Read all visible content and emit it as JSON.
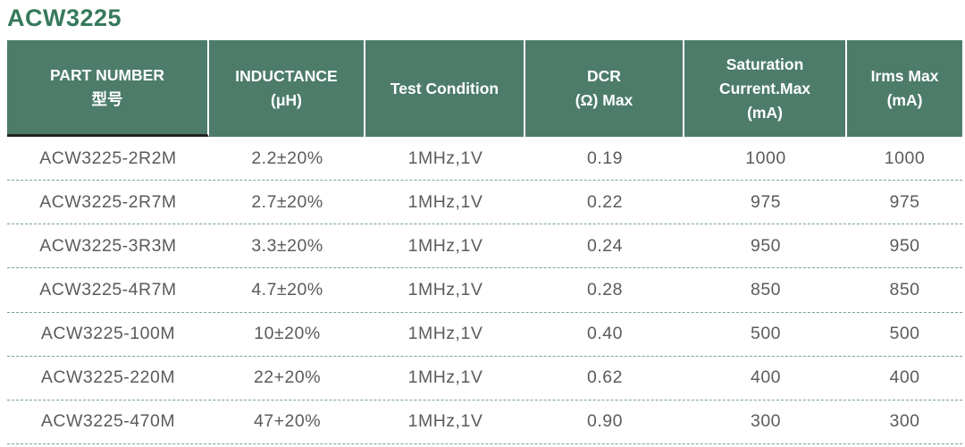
{
  "page_title": "ACW3225",
  "colors": {
    "title_text": "#35795b",
    "header_bg": "#4d7c6a",
    "header_text": "#ffffff",
    "header_first_col_underline": "#222422",
    "row_text": "#5a5b5d",
    "row_divider_dashed": "#76a09b",
    "background": "#ffffff"
  },
  "table": {
    "columns": [
      {
        "id": "part_number",
        "line1": "PART NUMBER",
        "line2": "型号"
      },
      {
        "id": "inductance",
        "line1": "INDUCTANCE",
        "line2": "(μH)"
      },
      {
        "id": "test_condition",
        "line1": "Test Condition"
      },
      {
        "id": "dcr",
        "line1": "DCR",
        "line2": "(Ω) Max"
      },
      {
        "id": "saturation",
        "line1": "Saturation",
        "line2": "Current.Max",
        "line3": "(mA)"
      },
      {
        "id": "irms",
        "line1": "Irms Max",
        "line2": "(mA)"
      }
    ],
    "rows": [
      [
        "ACW3225-2R2M",
        "2.2±20%",
        "1MHz,1V",
        "0.19",
        "1000",
        "1000"
      ],
      [
        "ACW3225-2R7M",
        "2.7±20%",
        "1MHz,1V",
        "0.22",
        "975",
        "975"
      ],
      [
        "ACW3225-3R3M",
        "3.3±20%",
        "1MHz,1V",
        "0.24",
        "950",
        "950"
      ],
      [
        "ACW3225-4R7M",
        "4.7±20%",
        "1MHz,1V",
        "0.28",
        "850",
        "850"
      ],
      [
        "ACW3225-100M",
        "10±20%",
        "1MHz,1V",
        "0.40",
        "500",
        "500"
      ],
      [
        "ACW3225-220M",
        "22+20%",
        "1MHz,1V",
        "0.62",
        "400",
        "400"
      ],
      [
        "ACW3225-470M",
        "47+20%",
        "1MHz,1V",
        "0.90",
        "300",
        "300"
      ]
    ]
  }
}
